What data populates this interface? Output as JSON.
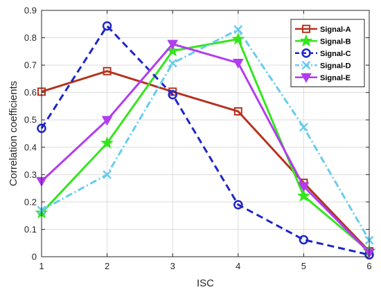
{
  "chart_data": {
    "type": "line",
    "xlabel": "ISC",
    "ylabel": "Correlation coefficients",
    "x": [
      1,
      2,
      3,
      4,
      5,
      6
    ],
    "xlim": [
      1,
      6
    ],
    "ylim": [
      0,
      0.9
    ],
    "xticks": [
      "1",
      "2",
      "3",
      "4",
      "5",
      "6"
    ],
    "yticks": [
      "0",
      "0.1",
      "0.2",
      "0.3",
      "0.4",
      "0.5",
      "0.6",
      "0.7",
      "0.8",
      "0.9"
    ],
    "grid": true,
    "legend_position": "top-right",
    "series": [
      {
        "name": "Signal-A",
        "values": [
          0.603,
          0.678,
          0.603,
          0.531,
          0.27,
          0.02
        ],
        "color": "#b5331e",
        "line_style": "solid",
        "marker": "square"
      },
      {
        "name": "Signal-B",
        "values": [
          0.16,
          0.415,
          0.752,
          0.795,
          0.222,
          0.02
        ],
        "color": "#33e61c",
        "line_style": "solid",
        "marker": "star"
      },
      {
        "name": "Signal-C",
        "values": [
          0.469,
          0.843,
          0.592,
          0.19,
          0.062,
          0.007
        ],
        "color": "#1e25c9",
        "line_style": "dashed",
        "marker": "circle"
      },
      {
        "name": "Signal-D",
        "values": [
          0.17,
          0.3,
          0.707,
          0.83,
          0.473,
          0.06
        ],
        "color": "#66ccee",
        "line_style": "dashdot",
        "marker": "x"
      },
      {
        "name": "Signal-E",
        "values": [
          0.276,
          0.499,
          0.777,
          0.708,
          0.257,
          0.015
        ],
        "color": "#b13cf0",
        "line_style": "solid",
        "marker": "triangle-down"
      }
    ]
  }
}
